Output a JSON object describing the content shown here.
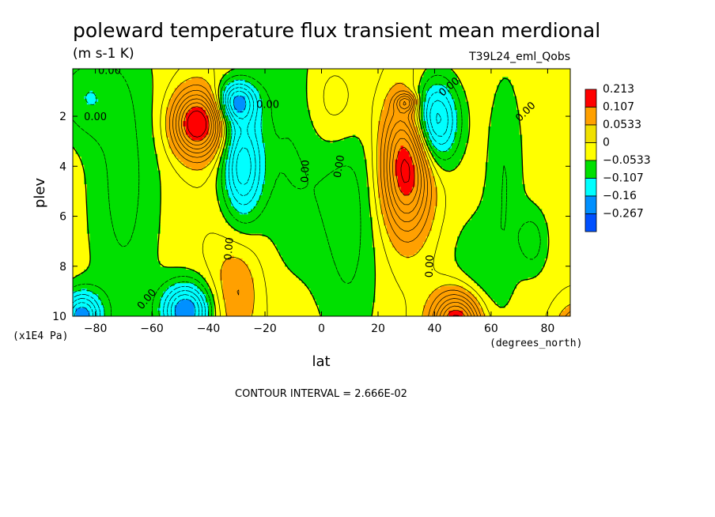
{
  "chart_data": {
    "type": "heatmap",
    "title": "poleward temperature flux transient mean merdional",
    "units": "(m s-1 K)",
    "experiment": "T39L24_eml_Qobs",
    "xlabel": "lat",
    "xunits": "(degrees_north)",
    "ylabel": "plev",
    "yunits": "(x1E4 Pa)",
    "xlim": [
      -88,
      88
    ],
    "ylim": [
      0.1,
      10
    ],
    "y_inverted": true,
    "xticks": [
      -80,
      -60,
      -40,
      -20,
      0,
      20,
      40,
      60,
      80
    ],
    "xtick_labels": [
      "-80",
      "-60",
      "-40",
      "-20",
      "0",
      "20",
      "40",
      "60",
      "80"
    ],
    "yticks": [
      2,
      4,
      6,
      8,
      10
    ],
    "ytick_labels": [
      "2",
      "4",
      "6",
      "8",
      "10"
    ],
    "contour_interval": "CONTOUR INTERVAL = 2.666E-02",
    "contour_label_text": "0.00",
    "levels": [
      -0.267,
      -0.16,
      -0.107,
      -0.0533,
      0,
      0.0533,
      0.107,
      0.213
    ],
    "colorbar_labels": [
      "0.213",
      "0.107",
      "0.0533",
      "0",
      "-0.0533",
      "-0.107",
      "-0.16",
      "-0.267"
    ],
    "colorbar_colors": [
      "#ff0000",
      "#ffa000",
      "#f0e000",
      "#ffff00",
      "#00e000",
      "#00ffff",
      "#0090ff",
      "#0050ff"
    ],
    "fill_colors": {
      "lt_-0.267": "#0050ff",
      "-0.267_-0.16": "#0090ff",
      "-0.16_-0.107": "#00ffff",
      "-0.107_-0.0533": "#00ffff",
      "-0.0533_0": "#00e000",
      "0_0.0533": "#ffff00",
      "0.0533_0.107": "#ffa000",
      "0.107_0.213": "#ffa000",
      "gt_0.213": "#ff0000"
    },
    "background": {
      "value": 0.025
    },
    "features": [
      {
        "lat": -44,
        "plev": 2.3,
        "amp": 0.26,
        "slat": 6,
        "splev": 0.9
      },
      {
        "lat": 30,
        "plev": 4.0,
        "amp": 0.24,
        "slat": 6,
        "splev": 1.8
      },
      {
        "lat": 48,
        "plev": 10.3,
        "amp": 0.26,
        "slat": 6,
        "splev": 0.9
      },
      {
        "lat": 90,
        "plev": 10.5,
        "amp": 0.12,
        "slat": 4,
        "splev": 0.6
      },
      {
        "lat": -30,
        "plev": 1.4,
        "amp": -0.17,
        "slat": 5,
        "splev": 0.6
      },
      {
        "lat": -28,
        "plev": 4.0,
        "amp": -0.17,
        "slat": 5,
        "splev": 1.5
      },
      {
        "lat": 40,
        "plev": 2.2,
        "amp": -0.19,
        "slat": 6,
        "splev": 1.2
      },
      {
        "lat": -48,
        "plev": 9.8,
        "amp": -0.22,
        "slat": 6,
        "splev": 0.8
      },
      {
        "lat": -85,
        "plev": 10,
        "amp": -0.2,
        "slat": 5,
        "splev": 0.7
      },
      {
        "lat": 30,
        "plev": 1.45,
        "amp": 0.12,
        "slat": 2.5,
        "splev": 0.25
      },
      {
        "lat": -10,
        "plev": 3.0,
        "amp": -0.055,
        "slat": 10,
        "splev": 4
      },
      {
        "lat": 10,
        "plev": 5.5,
        "amp": -0.06,
        "slat": 8,
        "splev": 5
      },
      {
        "lat": -70,
        "plev": 4.5,
        "amp": -0.06,
        "slat": 10,
        "splev": 5
      },
      {
        "lat": -85,
        "plev": 1.2,
        "amp": -0.06,
        "slat": 8,
        "splev": 1.2
      },
      {
        "lat": 65,
        "plev": 4.0,
        "amp": -0.05,
        "slat": 5,
        "splev": 3
      },
      {
        "lat": 75,
        "plev": 7.0,
        "amp": -0.06,
        "slat": 4,
        "splev": 1
      },
      {
        "lat": 55,
        "plev": 8.5,
        "amp": -0.05,
        "slat": 8,
        "splev": 2
      },
      {
        "lat": -30,
        "plev": 9.0,
        "amp": 0.06,
        "slat": 6,
        "splev": 1.5
      },
      {
        "lat": 5,
        "plev": 1.5,
        "amp": 0.06,
        "slat": 8,
        "splev": 1.5
      }
    ]
  }
}
